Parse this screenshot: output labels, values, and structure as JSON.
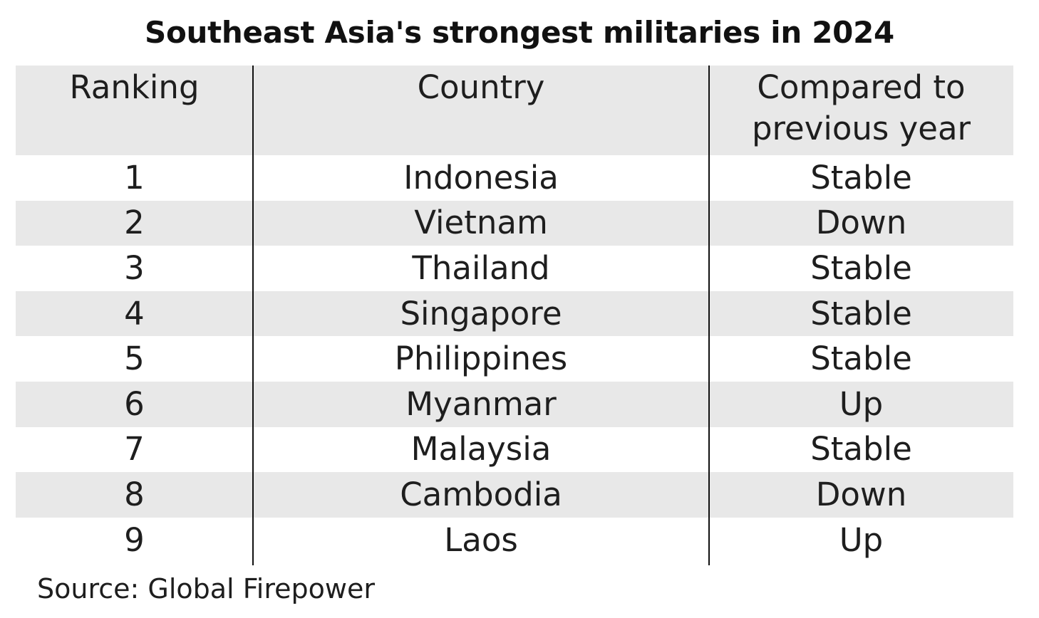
{
  "chart_data": {
    "type": "table",
    "title": "Southeast Asia's strongest militaries in 2024",
    "columns": [
      "Ranking",
      "Country",
      "Compared to previous year"
    ],
    "rows": [
      [
        "1",
        "Indonesia",
        "Stable"
      ],
      [
        "2",
        "Vietnam",
        "Down"
      ],
      [
        "3",
        "Thailand",
        "Stable"
      ],
      [
        "4",
        "Singapore",
        "Stable"
      ],
      [
        "5",
        "Philippines",
        "Stable"
      ],
      [
        "6",
        "Myanmar",
        "Up"
      ],
      [
        "7",
        "Malaysia",
        "Stable"
      ],
      [
        "8",
        "Cambodia",
        "Down"
      ],
      [
        "9",
        "Laos",
        "Up"
      ]
    ],
    "source": "Source: Global Firepower"
  },
  "colors": {
    "row_shade": "#e8e8e8",
    "text": "#1e1e1e",
    "divider": "#111111"
  }
}
